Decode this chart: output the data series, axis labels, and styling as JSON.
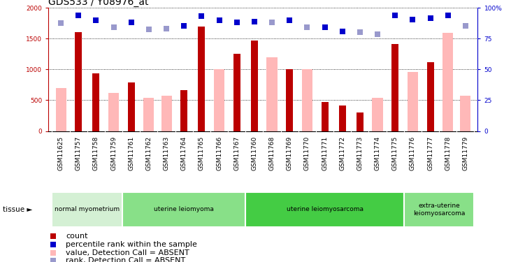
{
  "title": "GDS533 / Y08976_at",
  "samples": [
    "GSM11625",
    "GSM11757",
    "GSM11758",
    "GSM11759",
    "GSM11761",
    "GSM11762",
    "GSM11763",
    "GSM11764",
    "GSM11765",
    "GSM11766",
    "GSM11767",
    "GSM11760",
    "GSM11768",
    "GSM11769",
    "GSM11770",
    "GSM11771",
    "GSM11772",
    "GSM11773",
    "GSM11774",
    "GSM11775",
    "GSM11776",
    "GSM11777",
    "GSM11778",
    "GSM11779"
  ],
  "count_values": [
    null,
    1610,
    940,
    null,
    790,
    null,
    null,
    660,
    1700,
    null,
    1250,
    1470,
    null,
    1000,
    null,
    470,
    410,
    300,
    null,
    1410,
    null,
    1120,
    null,
    null
  ],
  "absent_values": [
    700,
    null,
    null,
    620,
    null,
    540,
    570,
    null,
    null,
    1000,
    null,
    null,
    1200,
    null,
    1000,
    null,
    null,
    null,
    540,
    null,
    960,
    null,
    1600,
    570
  ],
  "rank_dark_values": [
    null,
    1880,
    1800,
    null,
    1760,
    null,
    null,
    1710,
    1870,
    1800,
    1770,
    1780,
    null,
    1800,
    null,
    1680,
    1620,
    null,
    null,
    1880,
    1810,
    1830,
    1880,
    null
  ],
  "rank_light_values": [
    1750,
    null,
    null,
    1680,
    null,
    1650,
    1660,
    null,
    null,
    null,
    null,
    null,
    1760,
    null,
    1680,
    null,
    null,
    1610,
    1570,
    null,
    null,
    null,
    null,
    1710
  ],
  "tissue_groups": [
    {
      "label": "normal myometrium",
      "start": 0,
      "end": 4,
      "color": "#d4f0d4"
    },
    {
      "label": "uterine leiomyoma",
      "start": 4,
      "end": 11,
      "color": "#88e088"
    },
    {
      "label": "uterine leiomyosarcoma",
      "start": 11,
      "end": 20,
      "color": "#44cc44"
    },
    {
      "label": "extra-uterine\nleiomyosarcoma",
      "start": 20,
      "end": 24,
      "color": "#88e088"
    }
  ],
  "ylim_left": [
    0,
    2000
  ],
  "ylim_right": [
    0,
    100
  ],
  "yticks_left": [
    0,
    500,
    1000,
    1500,
    2000
  ],
  "ytick_labels_left": [
    "0",
    "500",
    "1000",
    "1500",
    "2000"
  ],
  "yticks_right": [
    0,
    25,
    50,
    75,
    100
  ],
  "ytick_labels_right": [
    "0",
    "25",
    "50",
    "75",
    "100%"
  ],
  "count_color": "#bb0000",
  "absent_bar_color": "#ffb8b8",
  "rank_dark_color": "#0000cc",
  "rank_light_color": "#9999cc",
  "bg_color": "#ffffff",
  "xtick_bg": "#cccccc",
  "title_fontsize": 10,
  "tick_fontsize": 6.5,
  "legend_fontsize": 8,
  "legend_items": [
    {
      "color": "#bb0000",
      "label": "count"
    },
    {
      "color": "#0000cc",
      "label": "percentile rank within the sample"
    },
    {
      "color": "#ffb8b8",
      "label": "value, Detection Call = ABSENT"
    },
    {
      "color": "#9999cc",
      "label": "rank, Detection Call = ABSENT"
    }
  ]
}
